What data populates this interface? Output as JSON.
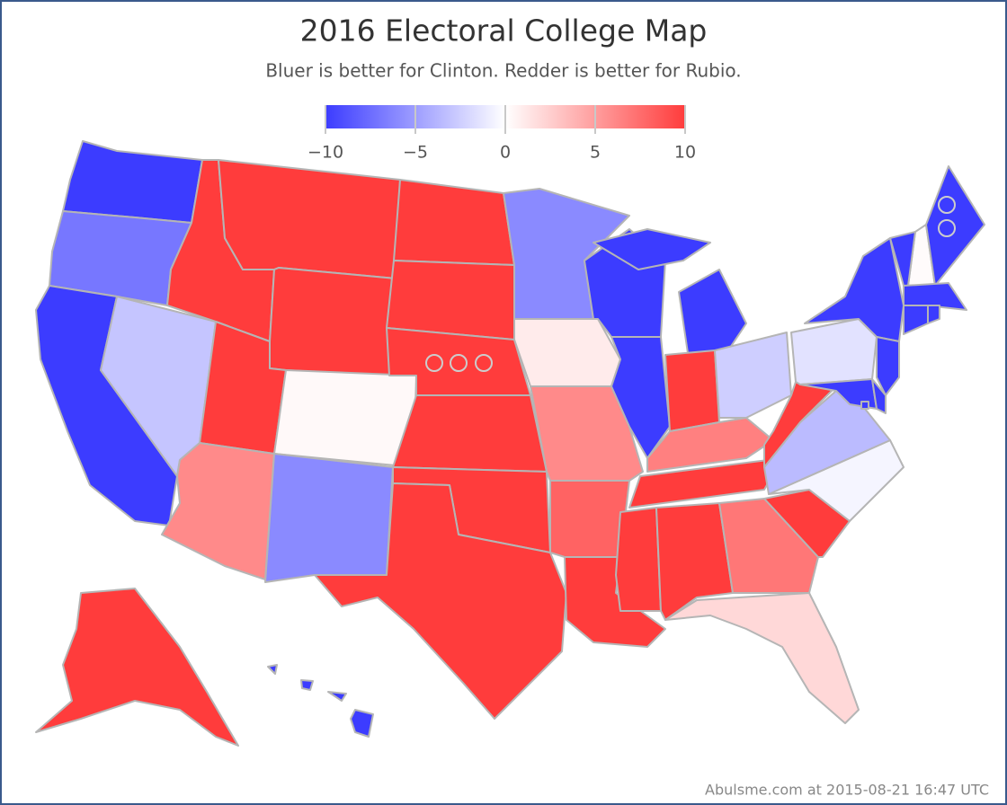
{
  "header": {
    "title": "2016 Electoral College Map",
    "subtitle": "Bluer is better for Clinton. Redder is better for Rubio."
  },
  "legend": {
    "lim": [
      -10,
      10
    ],
    "colors": [
      "#3c3cff",
      "#ffffff",
      "#ff3c3c"
    ],
    "ticks": [
      {
        "value": -10,
        "label": "−10"
      },
      {
        "value": -5,
        "label": "−5"
      },
      0,
      5,
      10
    ]
  },
  "map": {
    "values": [
      -10,
      -7,
      -10,
      -3,
      10,
      10,
      10,
      10,
      0.3,
      6,
      -6,
      10,
      10,
      10,
      10,
      10,
      10,
      -6,
      1,
      6,
      8,
      10,
      -10,
      -10,
      -10,
      10,
      -2.5,
      6.5,
      10,
      10,
      10,
      7,
      2,
      10,
      -0.5,
      -3.5,
      10,
      -1.5,
      -10,
      -10,
      -10,
      -10,
      -10,
      0.2,
      -10,
      -10,
      -10,
      -10,
      -10,
      10,
      -10
    ]
  },
  "footer": "Abulsme.com at 2015-08-21 16:47 UTC"
}
